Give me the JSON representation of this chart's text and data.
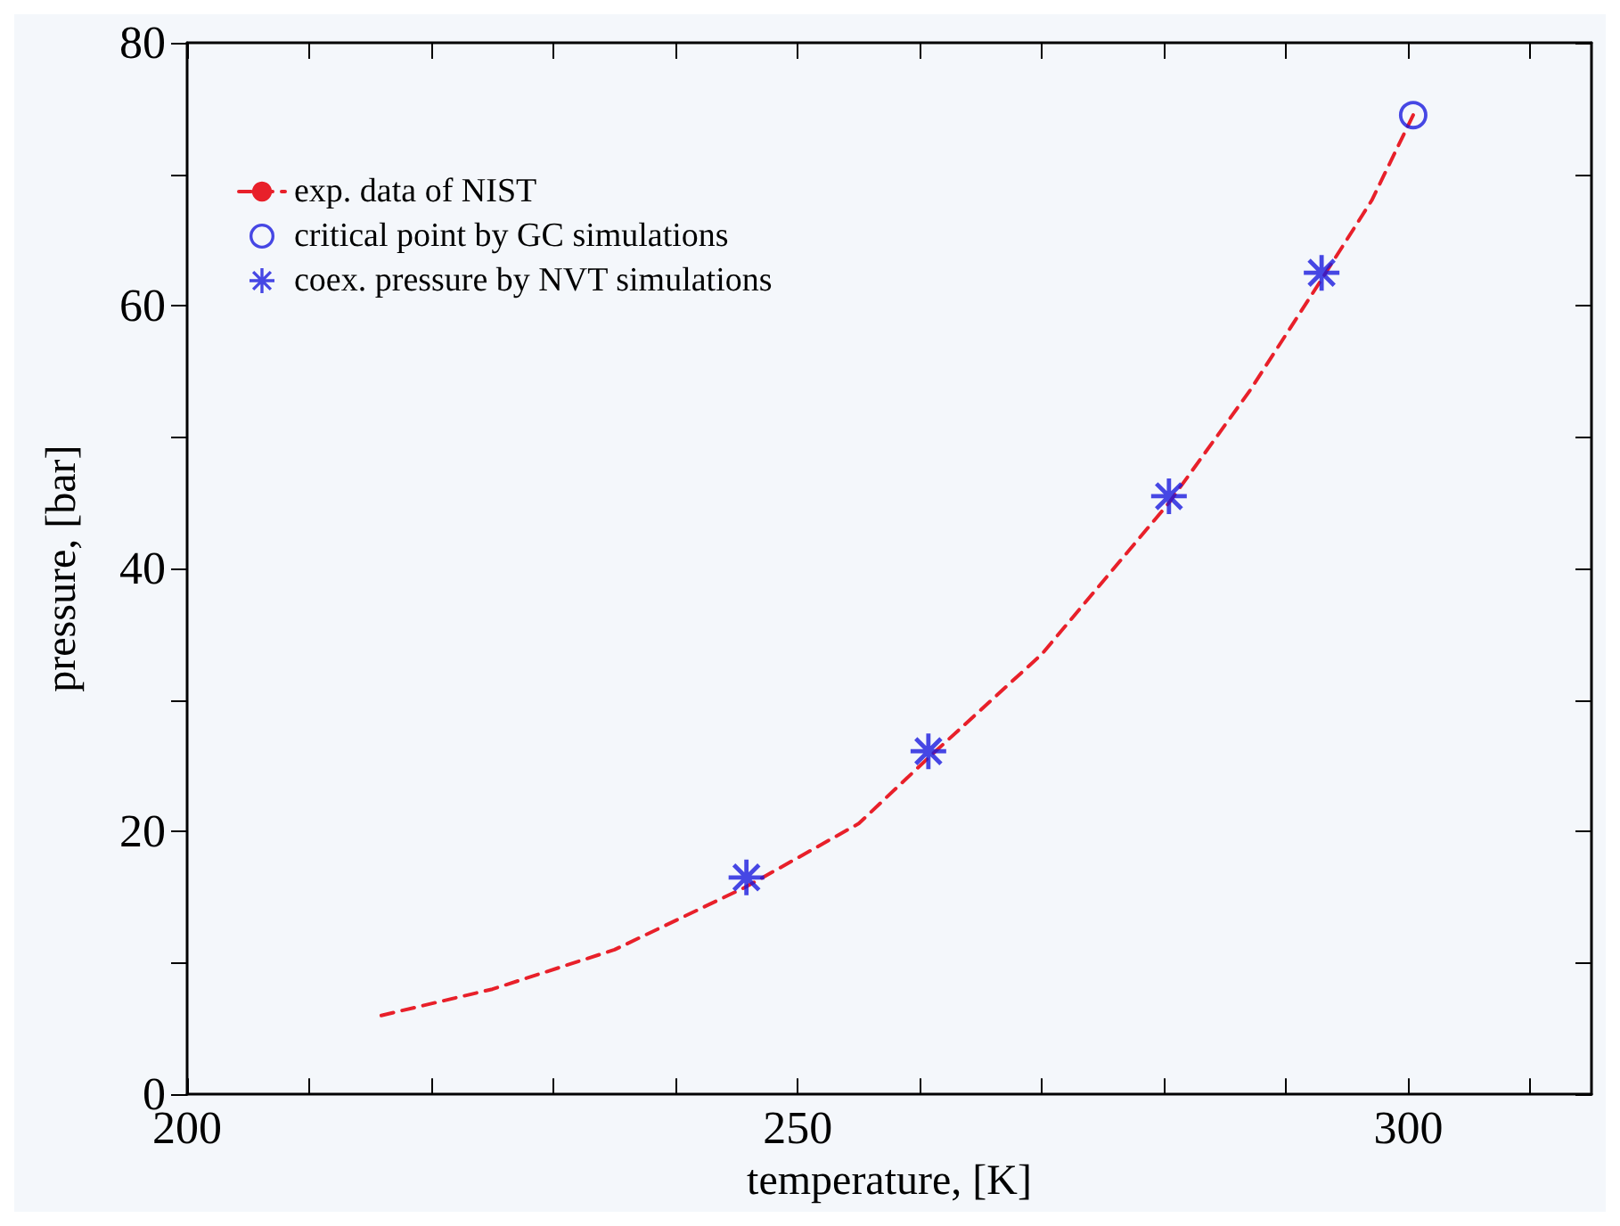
{
  "chart_data": {
    "type": "scatter",
    "xlabel": "temperature, [K]",
    "ylabel": "pressure, [bar]",
    "xlim": [
      200,
      315
    ],
    "ylim": [
      0,
      80
    ],
    "xticks": [
      200,
      {
        "value": 210,
        "label": null
      },
      {
        "value": 220,
        "label": null
      },
      {
        "value": 230,
        "label": null
      },
      {
        "value": 240,
        "label": null
      },
      250,
      {
        "value": 260,
        "label": null
      },
      {
        "value": 270,
        "label": null
      },
      {
        "value": 280,
        "label": null
      },
      {
        "value": 290,
        "label": null
      },
      300,
      {
        "value": 310,
        "label": null
      }
    ],
    "yticks": [
      0,
      {
        "value": 10,
        "label": null
      },
      20,
      {
        "value": 30,
        "label": null
      },
      40,
      {
        "value": 50,
        "label": null
      },
      60,
      {
        "value": 70,
        "label": null
      },
      80
    ],
    "grid": false,
    "legend": "top left",
    "series": [
      {
        "name": "exp. data of NIST",
        "type": "line",
        "line_style": "dashed",
        "marker": "none",
        "color": "#e8202a",
        "x": [
          215.9,
          225,
          235,
          245.8,
          255,
          260.7,
          270,
          280.4,
          287,
          292.9,
          297,
          300.4
        ],
        "values": [
          6.0,
          8.0,
          11.0,
          15.8,
          20.6,
          25.6,
          33.5,
          45.0,
          53.5,
          62.0,
          68.0,
          74.5
        ]
      },
      {
        "name": "critical point by GC simulations",
        "marker": "circle",
        "color": "#1a1adf",
        "x": [
          300.4
        ],
        "values": [
          74.5
        ]
      },
      {
        "name": "coex. pressure by NVT simulations",
        "marker": "cross",
        "color": "#1a1adf",
        "x": [
          245.8,
          260.7,
          280.4,
          292.9
        ],
        "values": [
          16.5,
          26.1,
          45.5,
          62.5
        ]
      }
    ]
  }
}
